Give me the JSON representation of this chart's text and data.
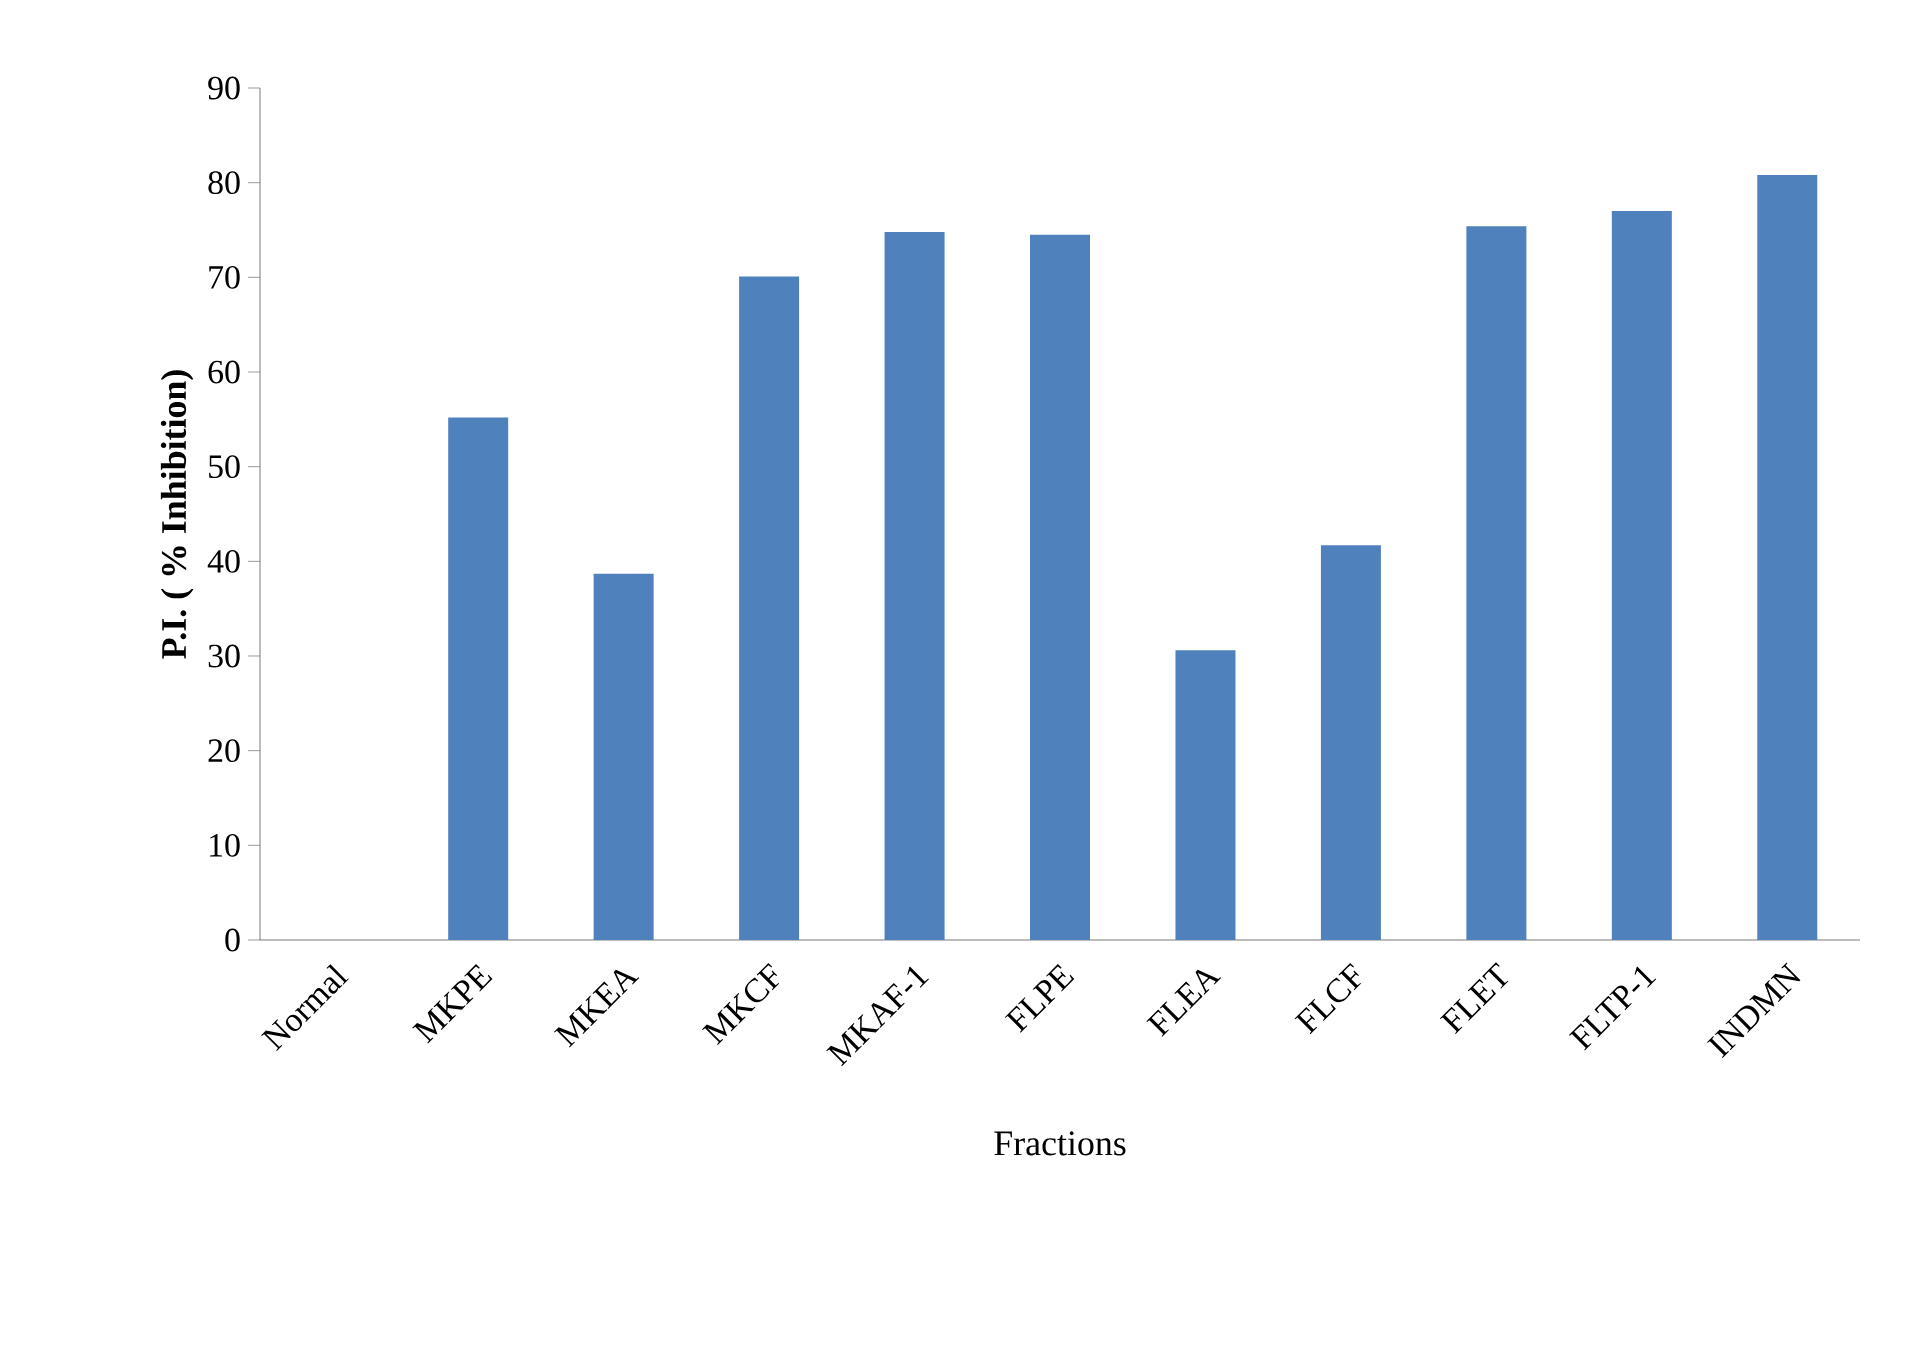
{
  "chart_data": {
    "type": "bar",
    "xlabel": "Fractions",
    "ylabel": "**P.I. ( % Inhibition)**",
    "categories": [
      "Normal",
      "MKPE",
      "MKEA",
      "MKCF",
      "MKAF-1",
      "FLPE",
      "FLEA",
      "FLCF",
      "FLET",
      "FLTP-1",
      "INDMN"
    ],
    "values": [
      0,
      55.2,
      38.7,
      70.1,
      74.8,
      74.5,
      30.6,
      41.7,
      75.4,
      77.0,
      80.8
    ],
    "color": "#4f81bd",
    "ylim": [
      0,
      90
    ],
    "yticks": [
      0,
      10,
      20,
      30,
      40,
      50,
      60,
      70,
      80,
      90
    ]
  }
}
